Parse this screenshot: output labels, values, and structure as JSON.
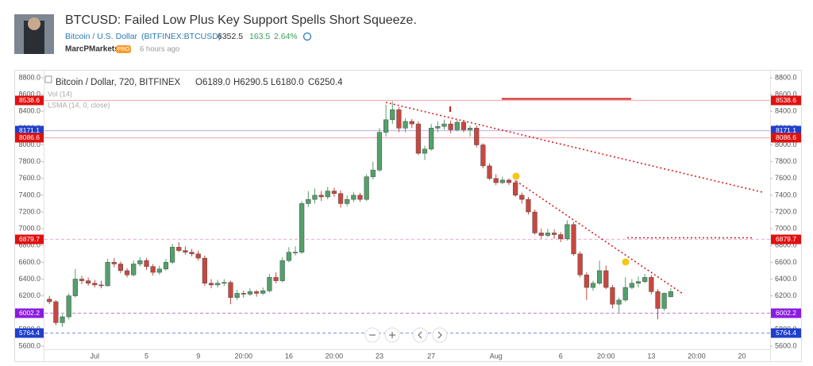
{
  "header": {
    "title": "BTCUSD: Failed Low Plus Key Support Spells Short Squeeze.",
    "symbol_name": "Bitcoin / U.S. Dollar",
    "symbol_code": "(BITFINEX:BTCUSD)",
    "price": "6352.5",
    "change": "163.5",
    "change_percent": "2.64%",
    "author": "MarcPMarkets",
    "badge": "PRO",
    "time": "6 hours ago"
  },
  "chart_data": {
    "type": "candlestick",
    "legend_title": "Bitcoin / Dollar, 720, BITFINEX",
    "ohlc_legend": [
      "O6189.0",
      "H6290.5",
      "L6180.0",
      "C6250.4"
    ],
    "indicators": [
      "Vol (14)",
      "LSMA (14, 0, close)"
    ],
    "up_color": "#53a06b",
    "down_color": "#c9473f",
    "categories": [
      null,
      null,
      null,
      null,
      null,
      null,
      null,
      null,
      "Jul",
      null,
      null,
      null,
      null,
      null,
      null,
      null,
      "5",
      null,
      null,
      null,
      null,
      null,
      null,
      null,
      "9",
      null,
      null,
      null,
      null,
      null,
      null,
      "20:00",
      null,
      null,
      null,
      null,
      null,
      null,
      "16",
      null,
      null,
      null,
      null,
      null,
      null,
      "20:00",
      null,
      null,
      null,
      null,
      null,
      null,
      "23",
      null,
      null,
      null,
      null,
      null,
      null,
      null,
      "27",
      null,
      null,
      null,
      null,
      null,
      null,
      null,
      null,
      null,
      "Aug",
      null,
      null,
      null,
      null,
      null,
      null,
      null,
      null,
      null,
      "6",
      null,
      null,
      null,
      null,
      null,
      null,
      "20:00",
      null,
      null,
      null,
      null,
      null,
      null,
      "13",
      null,
      null,
      null,
      null,
      null,
      null,
      "20:00",
      null,
      null,
      null,
      null,
      null,
      null,
      "20",
      null,
      null,
      null
    ],
    "open": [
      null,
      6160,
      6130,
      5880,
      5950,
      6200,
      6400,
      6380,
      6350,
      6330,
      6320,
      6600,
      6580,
      6500,
      6450,
      6580,
      6620,
      6550,
      6480,
      6520,
      6600,
      6780,
      6740,
      6720,
      6700,
      6650,
      6350,
      6330,
      6350,
      6360,
      6180,
      6230,
      6220,
      6250,
      6230,
      6260,
      6420,
      6380,
      6620,
      6720,
      6720,
      7300,
      7350,
      7400,
      7380,
      7450,
      7420,
      7300,
      7350,
      7400,
      7350,
      7620,
      7700,
      8150,
      8300,
      8420,
      8200,
      8280,
      8250,
      7900,
      7950,
      8200,
      8220,
      8250,
      8180,
      8270,
      8180,
      8200,
      8000,
      7750,
      7600,
      7550,
      7580,
      7550,
      7400,
      7350,
      7200,
      6950,
      6920,
      6950,
      6930,
      6880,
      7050,
      6700,
      6450,
      6300,
      6350,
      6500,
      6300,
      6100,
      6150,
      6300,
      6350,
      6370,
      6420,
      6250,
      6050,
      6189,
      null,
      null,
      null,
      null,
      null,
      null,
      null,
      null,
      null,
      null,
      null,
      null,
      null,
      null
    ],
    "high": [
      null,
      6200,
      6150,
      5980,
      6230,
      6520,
      6440,
      6420,
      6390,
      6380,
      6640,
      6650,
      6610,
      6530,
      6620,
      6660,
      6650,
      6580,
      6560,
      6640,
      6820,
      6840,
      6790,
      6760,
      6740,
      6680,
      6400,
      6390,
      6400,
      6380,
      6270,
      6260,
      6290,
      6270,
      6300,
      6460,
      6480,
      6660,
      6780,
      6790,
      7330,
      7450,
      7480,
      7450,
      7500,
      7490,
      7460,
      7400,
      7440,
      7430,
      7650,
      7800,
      8200,
      8480,
      8520,
      8450,
      8320,
      8310,
      8280,
      7990,
      8250,
      8280,
      8300,
      8290,
      8300,
      8300,
      8230,
      8230,
      8020,
      7780,
      7650,
      7620,
      7600,
      7580,
      7430,
      7380,
      7230,
      7000,
      7000,
      6990,
      6960,
      7100,
      7080,
      6730,
      6480,
      6380,
      6620,
      6560,
      6330,
      6180,
      6420,
      6400,
      6430,
      6460,
      6450,
      6280,
      6240,
      6290.5,
      null,
      null,
      null,
      null,
      null,
      null,
      null,
      null,
      null,
      null,
      null,
      null,
      null,
      null
    ],
    "low": [
      null,
      6100,
      5850,
      5830,
      5920,
      6180,
      6340,
      6320,
      6300,
      6290,
      6310,
      6540,
      6470,
      6420,
      6430,
      6550,
      6510,
      6440,
      6450,
      6500,
      6580,
      6720,
      6690,
      6670,
      6620,
      6320,
      6290,
      6300,
      6320,
      6100,
      6150,
      6180,
      6200,
      6190,
      6210,
      6240,
      6350,
      6360,
      6600,
      6680,
      6700,
      7260,
      7300,
      7330,
      7350,
      7380,
      7250,
      7270,
      7320,
      7320,
      7330,
      7590,
      7680,
      8100,
      8250,
      8150,
      8150,
      8200,
      7880,
      7820,
      7930,
      8150,
      8180,
      8140,
      8160,
      8150,
      8100,
      7970,
      7720,
      7580,
      7520,
      7530,
      7520,
      7380,
      7300,
      7170,
      6930,
      6880,
      6900,
      6880,
      6840,
      6860,
      6680,
      6420,
      6150,
      6260,
      6330,
      6280,
      6050,
      6000,
      6130,
      6280,
      6300,
      6350,
      6220,
      5920,
      6020,
      6180,
      null,
      null,
      null,
      null,
      null,
      null,
      null,
      null,
      null,
      null,
      null,
      null,
      null,
      null
    ],
    "close": [
      null,
      6130,
      5880,
      5950,
      6200,
      6400,
      6380,
      6350,
      6330,
      6320,
      6600,
      6580,
      6500,
      6450,
      6580,
      6620,
      6550,
      6480,
      6520,
      6600,
      6780,
      6740,
      6720,
      6700,
      6650,
      6350,
      6330,
      6350,
      6360,
      6180,
      6230,
      6220,
      6250,
      6230,
      6260,
      6420,
      6380,
      6620,
      6720,
      6720,
      7300,
      7350,
      7400,
      7380,
      7450,
      7420,
      7300,
      7350,
      7400,
      7350,
      7620,
      7700,
      8150,
      8300,
      8420,
      8200,
      8280,
      8250,
      7900,
      7950,
      8200,
      8220,
      8250,
      8180,
      8270,
      8180,
      8200,
      8000,
      7750,
      7600,
      7550,
      7580,
      7550,
      7400,
      7350,
      7200,
      6950,
      6920,
      6950,
      6930,
      6880,
      7050,
      6700,
      6450,
      6300,
      6350,
      6500,
      6300,
      6100,
      6150,
      6300,
      6350,
      6370,
      6420,
      6250,
      6050,
      6230,
      6250.4,
      null,
      null,
      null,
      null,
      null,
      null,
      null,
      null,
      null,
      null,
      null,
      null,
      null,
      null
    ],
    "ylim": [
      5600,
      8800
    ],
    "yticks": [
      {
        "value": 5600,
        "label": "5600.0"
      },
      {
        "value": 5800,
        "label": "5800.0"
      },
      {
        "value": 6000,
        "label": "6000.0"
      },
      {
        "value": 6200,
        "label": "6200.0"
      },
      {
        "value": 6400,
        "label": "6400.0"
      },
      {
        "value": 6600,
        "label": "6600.0"
      },
      {
        "value": 6800,
        "label": "6800.0"
      },
      {
        "value": 7000,
        "label": "7000.0"
      },
      {
        "value": 7200,
        "label": "7200.0"
      },
      {
        "value": 7400,
        "label": "7400.0"
      },
      {
        "value": 7600,
        "label": "7600.0"
      },
      {
        "value": 7800,
        "label": "7800.0"
      },
      {
        "value": 8000,
        "label": "8000.0"
      },
      {
        "value": 8200,
        "label": "8200.0"
      },
      {
        "value": 8400,
        "label": "8400.0"
      },
      {
        "value": 8600,
        "label": "8600.0"
      },
      {
        "value": 8800,
        "label": "8800.0"
      }
    ],
    "levels": [
      {
        "value": 8538.6,
        "color": "#e01010",
        "line": "#f3b3b3",
        "dash": false
      },
      {
        "value": 8171.1,
        "color": "#1f3fcc",
        "line": "#c9b8ee",
        "dash": false
      },
      {
        "value": 8086.6,
        "color": "#e01010",
        "line": "#f3b3b3",
        "dash": false
      },
      {
        "value": 6879.7,
        "color": "#e01010",
        "line": "#f1b6d8",
        "dash": true
      },
      {
        "value": 6002.2,
        "color": "#8a1be0",
        "line": "#c98ce8",
        "dash": true
      },
      {
        "value": 5764.4,
        "color": "#1f3fcc",
        "line": "#8f9ee8",
        "dash": true
      }
    ]
  }
}
